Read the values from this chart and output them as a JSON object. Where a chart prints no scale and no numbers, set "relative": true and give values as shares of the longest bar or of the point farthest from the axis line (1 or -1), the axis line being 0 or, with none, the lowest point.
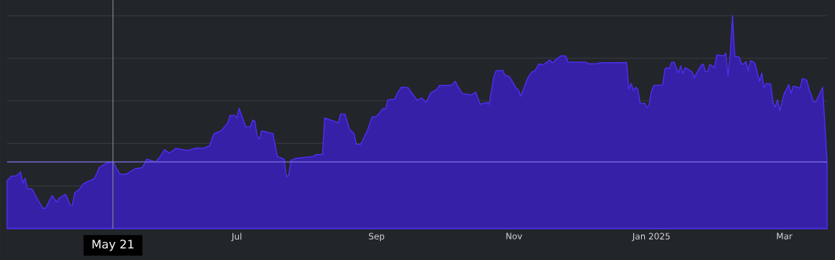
{
  "chart_data": {
    "type": "area",
    "relative": true,
    "color": "#4f2ff5",
    "grid": "y",
    "xlim": [
      "2024-04-04",
      "2025-04-03"
    ],
    "xticks": [
      {
        "value": "2024-07-15",
        "label": "Jul"
      },
      {
        "value": "2024-09-15",
        "label": "Sep"
      },
      {
        "value": "2024-11-15",
        "label": "Nov"
      },
      {
        "value": "2025-01-15",
        "label": "Jan 2025"
      },
      {
        "value": "2025-03-15",
        "label": "Mar"
      }
    ],
    "ref_lines": [
      {
        "axis": "x",
        "value": "2024-05-21",
        "label": "May 21",
        "color": "#8c8e94"
      },
      {
        "axis": "y",
        "value": 0.313,
        "color": "#7b70dc"
      }
    ],
    "x": [
      "2024-04-04",
      "2024-04-06",
      "2024-04-08",
      "2024-04-10",
      "2024-04-11",
      "2024-04-12",
      "2024-04-13",
      "2024-04-15",
      "2024-04-18",
      "2024-04-20",
      "2024-04-21",
      "2024-04-24",
      "2024-04-26",
      "2024-04-27",
      "2024-04-30",
      "2024-05-02",
      "2024-05-03",
      "2024-05-04",
      "2024-05-06",
      "2024-05-08",
      "2024-05-12",
      "2024-05-13",
      "2024-05-15",
      "2024-05-18",
      "2024-05-21",
      "2024-05-24",
      "2024-05-27",
      "2024-05-31",
      "2024-06-03",
      "2024-06-05",
      "2024-06-09",
      "2024-06-11",
      "2024-06-13",
      "2024-06-15",
      "2024-06-18",
      "2024-06-23",
      "2024-06-27",
      "2024-06-30",
      "2024-07-03",
      "2024-07-04",
      "2024-07-05",
      "2024-07-08",
      "2024-07-11",
      "2024-07-12",
      "2024-07-14",
      "2024-07-15",
      "2024-07-16",
      "2024-07-19",
      "2024-07-21",
      "2024-07-22",
      "2024-07-23",
      "2024-07-24",
      "2024-07-25",
      "2024-07-26",
      "2024-07-30",
      "2024-07-31",
      "2024-08-02",
      "2024-08-05",
      "2024-08-06",
      "2024-08-07",
      "2024-08-08",
      "2024-08-10",
      "2024-08-18",
      "2024-08-19",
      "2024-08-22",
      "2024-08-23",
      "2024-08-26",
      "2024-08-29",
      "2024-08-30",
      "2024-09-01",
      "2024-09-03",
      "2024-09-05",
      "2024-09-06",
      "2024-09-08",
      "2024-09-11",
      "2024-09-13",
      "2024-09-15",
      "2024-09-18",
      "2024-09-19",
      "2024-09-20",
      "2024-09-23",
      "2024-09-24",
      "2024-09-26",
      "2024-09-29",
      "2024-10-03",
      "2024-10-05",
      "2024-10-07",
      "2024-10-09",
      "2024-10-12",
      "2024-10-13",
      "2024-10-18",
      "2024-10-20",
      "2024-10-21",
      "2024-10-23",
      "2024-10-27",
      "2024-10-29",
      "2024-10-31",
      "2024-11-03",
      "2024-11-04",
      "2024-11-06",
      "2024-11-07",
      "2024-11-10",
      "2024-11-11",
      "2024-11-13",
      "2024-11-16",
      "2024-11-17",
      "2024-11-18",
      "2024-11-21",
      "2024-11-23",
      "2024-11-24",
      "2024-11-26",
      "2024-11-28",
      "2024-12-01",
      "2024-12-02",
      "2024-12-04",
      "2024-12-06",
      "2024-12-08",
      "2024-12-09",
      "2024-12-17",
      "2024-12-18",
      "2024-12-22",
      "2024-12-23",
      "2025-01-04",
      "2025-01-05",
      "2025-01-06",
      "2025-01-07",
      "2025-01-08",
      "2025-01-09",
      "2025-01-10",
      "2025-01-12",
      "2025-01-13",
      "2025-01-14",
      "2025-01-15",
      "2025-01-16",
      "2025-01-20",
      "2025-01-21",
      "2025-01-22",
      "2025-01-23",
      "2025-01-24",
      "2025-01-25",
      "2025-01-27",
      "2025-01-28",
      "2025-01-29",
      "2025-01-30",
      "2025-02-02",
      "2025-02-03",
      "2025-02-06",
      "2025-02-07",
      "2025-02-08",
      "2025-02-09",
      "2025-02-10",
      "2025-02-12",
      "2025-02-13",
      "2025-02-16",
      "2025-02-17",
      "2025-02-18",
      "2025-02-19",
      "2025-02-20",
      "2025-02-21",
      "2025-02-23",
      "2025-02-24",
      "2025-02-25",
      "2025-02-26",
      "2025-02-27",
      "2025-02-28",
      "2025-03-01",
      "2025-03-02",
      "2025-03-04",
      "2025-03-05",
      "2025-03-06",
      "2025-03-07",
      "2025-03-09",
      "2025-03-10",
      "2025-03-11",
      "2025-03-12",
      "2025-03-13",
      "2025-03-15",
      "2025-03-17",
      "2025-03-18",
      "2025-03-19",
      "2025-03-22",
      "2025-03-23",
      "2025-03-25",
      "2025-03-26",
      "2025-03-28",
      "2025-03-29",
      "2025-04-01",
      "2025-04-03"
    ],
    "values": [
      0.225,
      0.247,
      0.247,
      0.266,
      0.214,
      0.237,
      0.187,
      0.187,
      0.129,
      0.095,
      0.095,
      0.155,
      0.123,
      0.142,
      0.161,
      0.11,
      0.11,
      0.168,
      0.184,
      0.212,
      0.231,
      0.24,
      0.288,
      0.307,
      0.313,
      0.256,
      0.256,
      0.282,
      0.286,
      0.326,
      0.313,
      0.339,
      0.371,
      0.354,
      0.377,
      0.367,
      0.379,
      0.377,
      0.39,
      0.425,
      0.447,
      0.459,
      0.497,
      0.532,
      0.532,
      0.52,
      0.565,
      0.478,
      0.478,
      0.51,
      0.504,
      0.434,
      0.421,
      0.459,
      0.449,
      0.447,
      0.339,
      0.326,
      0.244,
      0.25,
      0.32,
      0.33,
      0.339,
      0.348,
      0.348,
      0.52,
      0.509,
      0.497,
      0.538,
      0.538,
      0.466,
      0.447,
      0.396,
      0.396,
      0.463,
      0.523,
      0.527,
      0.565,
      0.561,
      0.605,
      0.608,
      0.631,
      0.665,
      0.662,
      0.603,
      0.614,
      0.593,
      0.637,
      0.656,
      0.673,
      0.673,
      0.692,
      0.669,
      0.635,
      0.628,
      0.641,
      0.584,
      0.593,
      0.584,
      0.711,
      0.741,
      0.743,
      0.72,
      0.714,
      0.66,
      0.651,
      0.622,
      0.705,
      0.737,
      0.737,
      0.773,
      0.769,
      0.792,
      0.778,
      0.798,
      0.812,
      0.81,
      0.782,
      0.782,
      0.774,
      0.775,
      0.779,
      0.78,
      0.656,
      0.682,
      0.65,
      0.664,
      0.654,
      0.59,
      0.589,
      0.568,
      0.581,
      0.644,
      0.672,
      0.676,
      0.75,
      0.756,
      0.75,
      0.782,
      0.782,
      0.731,
      0.765,
      0.727,
      0.756,
      0.737,
      0.709,
      0.766,
      0.773,
      0.737,
      0.738,
      0.771,
      0.756,
      0.816,
      0.811,
      0.824,
      0.718,
      0.82,
      1,
      0.81,
      0.805,
      0.773,
      0.773,
      0.785,
      0.741,
      0.788,
      0.785,
      0.775,
      0.692,
      0.731,
      0.66,
      0.682,
      0.679,
      0.59,
      0.571,
      0.605,
      0.554,
      0.635,
      0.677,
      0.635,
      0.67,
      0.66,
      0.705,
      0.696,
      0.654,
      0.596,
      0.596,
      0.664,
      0.312
    ]
  }
}
